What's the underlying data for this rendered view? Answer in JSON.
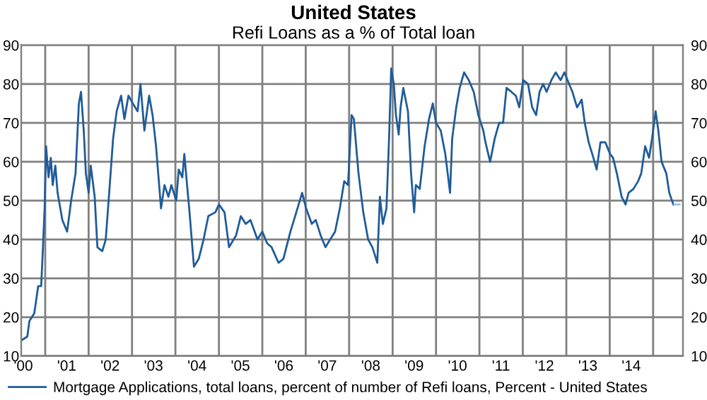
{
  "chart_data": {
    "type": "line",
    "title": "United States",
    "subtitle": "Refi Loans as a % of Total loan",
    "series": [
      {
        "name": "Mortgage Applications, total loans, percent of number of Refi loans, Percent - United States",
        "color": "#1f5c99",
        "line_style": "solid",
        "x": [
          "2000-06-13",
          "2000-08-03",
          "2000-08-21",
          "2000-10-01",
          "2000-11-03",
          "2000-11-28",
          "2000-12-13",
          "2000-12-27",
          "2001-01-08",
          "2001-01-29",
          "2001-02-17",
          "2001-03-05",
          "2001-03-27",
          "2001-04-15",
          "2001-05-25",
          "2001-07-04",
          "2001-08-07",
          "2001-09-13",
          "2001-10-11",
          "2001-10-29",
          "2001-11-21",
          "2001-12-09",
          "2002-01-01",
          "2002-01-19",
          "2002-02-21",
          "2002-03-16",
          "2002-04-26",
          "2002-05-25",
          "2002-06-23",
          "2002-07-26",
          "2002-08-25",
          "2002-10-01",
          "2002-10-29",
          "2002-12-02",
          "2003-01-08",
          "2003-02-17",
          "2003-03-13",
          "2003-04-15",
          "2003-05-25",
          "2003-06-23",
          "2003-07-22",
          "2003-09-02",
          "2003-10-01",
          "2003-11-03",
          "2003-11-28",
          "2004-01-08",
          "2004-01-29",
          "2004-02-28",
          "2004-03-16",
          "2004-04-08",
          "2004-04-26",
          "2004-06-05",
          "2004-07-15",
          "2004-08-25",
          "2004-10-04",
          "2004-12-02",
          "2005-01-01",
          "2005-02-17",
          "2005-03-27",
          "2005-05-25",
          "2005-07-04",
          "2005-08-14",
          "2005-09-23",
          "2005-11-21",
          "2006-01-01",
          "2006-02-10",
          "2006-03-20",
          "2006-05-17",
          "2006-06-27",
          "2006-08-25",
          "2006-10-04",
          "2006-12-02",
          "2007-01-04",
          "2007-02-21",
          "2007-03-27",
          "2007-05-07",
          "2007-06-16",
          "2007-07-26",
          "2007-09-05",
          "2007-10-15",
          "2007-11-21",
          "2007-12-23",
          "2008-01-08",
          "2008-01-22",
          "2008-02-10",
          "2008-03-20",
          "2008-04-29",
          "2008-06-09",
          "2008-07-15",
          "2008-08-25",
          "2008-09-16",
          "2008-10-11",
          "2008-11-10",
          "2008-12-02",
          "2008-12-20",
          "2009-01-11",
          "2009-01-29",
          "2009-02-21",
          "2009-03-09",
          "2009-04-01",
          "2009-05-10",
          "2009-06-05",
          "2009-07-01",
          "2009-07-15",
          "2009-08-17",
          "2009-09-27",
          "2009-11-03",
          "2009-12-05",
          "2010-01-01",
          "2010-02-10",
          "2010-03-20",
          "2010-04-29",
          "2010-05-17",
          "2010-06-20",
          "2010-07-19",
          "2010-08-25",
          "2010-10-04",
          "2010-11-14",
          "2010-12-23",
          "2011-02-03",
          "2011-02-21",
          "2011-04-01",
          "2011-05-10",
          "2011-06-16",
          "2011-07-19",
          "2011-08-17",
          "2011-09-27",
          "2011-11-03",
          "2011-12-02",
          "2012-01-04",
          "2012-02-14",
          "2012-03-20",
          "2012-04-22",
          "2012-05-21",
          "2012-06-20",
          "2012-07-19",
          "2012-08-28",
          "2012-10-04",
          "2012-11-14",
          "2012-12-16",
          "2013-01-11",
          "2013-02-21",
          "2013-04-01",
          "2013-05-10",
          "2013-06-05",
          "2013-07-08",
          "2013-08-17",
          "2013-09-13",
          "2013-10-15",
          "2013-11-25",
          "2014-01-04",
          "2014-01-29",
          "2014-03-02",
          "2014-04-11",
          "2014-05-14",
          "2014-06-09",
          "2014-07-19",
          "2014-08-28",
          "2014-09-23",
          "2014-10-26",
          "2014-11-28",
          "2014-12-23",
          "2015-01-22",
          "2015-02-14",
          "2015-03-13",
          "2015-04-22",
          "2015-05-17",
          "2015-06-20"
        ],
        "values": [
          14,
          15,
          19,
          21,
          28,
          28,
          38,
          48,
          64,
          56,
          61,
          54,
          59,
          52,
          45,
          42,
          50,
          57,
          75,
          78,
          68,
          57,
          52,
          59,
          51,
          38,
          37,
          40,
          52,
          66,
          73,
          77,
          71,
          77,
          75,
          73,
          80,
          68,
          77,
          72,
          64,
          48,
          54,
          51,
          54,
          50,
          58,
          56,
          62,
          54,
          48,
          33,
          35,
          40,
          46,
          47,
          49,
          47,
          38,
          41,
          46,
          44,
          45,
          40,
          42,
          39,
          38,
          34,
          35,
          42,
          46,
          52,
          48,
          44,
          45,
          41,
          38,
          40,
          42,
          48,
          55,
          54,
          64,
          72,
          71,
          57,
          47,
          40,
          38,
          34,
          51,
          44,
          48,
          66,
          84,
          80,
          72,
          67,
          74,
          79,
          73,
          57,
          47,
          54,
          53,
          64,
          71,
          75,
          70,
          68,
          62,
          52,
          66,
          74,
          79,
          83,
          81,
          78,
          72,
          68,
          65,
          60,
          66,
          70,
          70,
          79,
          78,
          77,
          74,
          81,
          80,
          74,
          72,
          78,
          80,
          78,
          81,
          83,
          81,
          83,
          81,
          78,
          74,
          76,
          70,
          65,
          61,
          58,
          65,
          65,
          62,
          61,
          57,
          51,
          49,
          52,
          53,
          55,
          57,
          64,
          61,
          66,
          73,
          68,
          60,
          57,
          52,
          49
        ]
      },
      {
        "color": "#9dc3e6",
        "line_style": "dashed",
        "x": [
          "2015-06-20",
          "2015-09-09"
        ],
        "values": [
          49,
          49
        ]
      }
    ],
    "xlim": [
      "2000-06-13",
      "2015-09-09"
    ],
    "xticks": [
      {
        "value": "2001-01-01",
        "label": null
      },
      {
        "value": "2002-01-01",
        "label": null
      },
      {
        "value": "2003-01-01",
        "label": null
      },
      {
        "value": "2004-01-01",
        "label": null
      },
      {
        "value": "2005-01-01",
        "label": null
      },
      {
        "value": "2006-01-01",
        "label": null
      },
      {
        "value": "2007-01-01",
        "label": null
      },
      {
        "value": "2008-01-01",
        "label": null
      },
      {
        "value": "2009-01-01",
        "label": null
      },
      {
        "value": "2010-01-01",
        "label": null
      },
      {
        "value": "2011-01-01",
        "label": null
      },
      {
        "value": "2012-01-01",
        "label": null
      },
      {
        "value": "2013-01-01",
        "label": null
      },
      {
        "value": "2014-01-01",
        "label": null
      },
      {
        "value": "2015-01-01",
        "label": null
      },
      {
        "value": "2000-07-01",
        "label": "'00"
      },
      {
        "value": "2001-07-01",
        "label": "'01"
      },
      {
        "value": "2002-07-01",
        "label": "'02"
      },
      {
        "value": "2003-07-01",
        "label": "'03"
      },
      {
        "value": "2004-07-01",
        "label": "'04"
      },
      {
        "value": "2005-07-01",
        "label": "'05"
      },
      {
        "value": "2006-07-01",
        "label": "'06"
      },
      {
        "value": "2007-07-01",
        "label": "'07"
      },
      {
        "value": "2008-07-01",
        "label": "'08"
      },
      {
        "value": "2009-07-01",
        "label": "'09"
      },
      {
        "value": "2010-07-01",
        "label": "'10"
      },
      {
        "value": "2011-07-01",
        "label": "'11"
      },
      {
        "value": "2012-07-01",
        "label": "'12"
      },
      {
        "value": "2013-07-01",
        "label": "'13"
      },
      {
        "value": "2014-07-01",
        "label": "'14"
      }
    ],
    "ylim": [
      10,
      90
    ],
    "yticks": [
      10,
      20,
      30,
      40,
      50,
      60,
      70,
      80,
      90
    ],
    "y2lim": [
      10,
      90
    ],
    "y2ticks": [
      10,
      20,
      30,
      40,
      50,
      60,
      70,
      80,
      90
    ],
    "grid": true,
    "legend": "bottom"
  }
}
